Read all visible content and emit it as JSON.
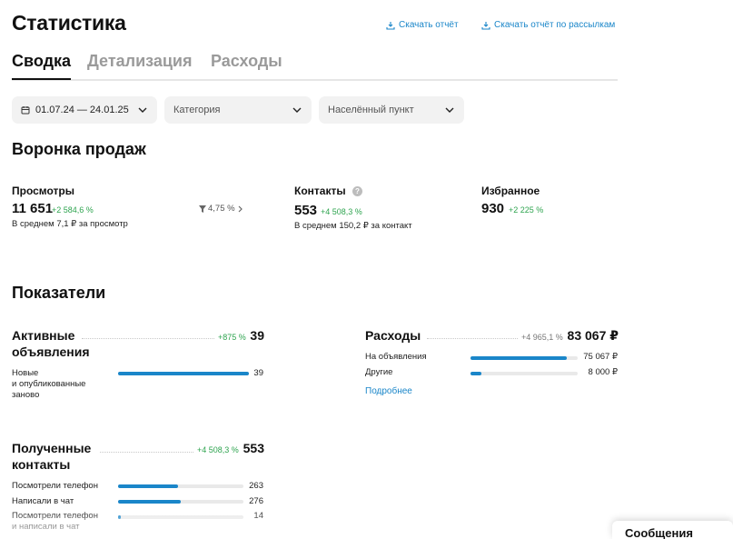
{
  "header": {
    "title": "Статистика",
    "download_report": "Скачать отчёт",
    "download_mailing_report": "Скачать отчёт по рассылкам"
  },
  "tabs": [
    {
      "label": "Сводка",
      "active": true
    },
    {
      "label": "Детализация",
      "active": false
    },
    {
      "label": "Расходы",
      "active": false
    }
  ],
  "filters": {
    "date_range": "01.07.24 — 24.01.25",
    "category_placeholder": "Категория",
    "city_placeholder": "Населённый пункт"
  },
  "funnel": {
    "title": "Воронка продаж",
    "views": {
      "label": "Просмотры",
      "value": "11 651",
      "delta": "+2 584,6 %",
      "sub": "В среднем 7,1 ₽ за просмотр"
    },
    "conversion": "4,75 %",
    "contacts": {
      "label": "Контакты",
      "value": "553",
      "delta": "+4 508,3 %",
      "sub": "В среднем 150,2 ₽ за контакт"
    },
    "favorites": {
      "label": "Избранное",
      "value": "930",
      "delta": "+2 225 %"
    }
  },
  "indicators": {
    "title": "Показатели",
    "active_ads": {
      "label_line1": "Активные",
      "label_line2": "объявления",
      "delta": "+875 %",
      "value": "39",
      "rows": [
        {
          "label_line1": "Новые",
          "label_line2": "и опубликованные",
          "label_line3": "заново",
          "value": "39",
          "fraction": 1.0
        }
      ]
    },
    "expenses": {
      "label": "Расходы",
      "delta": "+4 965,1 %",
      "value": "83 067 ₽",
      "rows": [
        {
          "label": "На объявления",
          "value": "75 067 ₽",
          "fraction": 0.9
        },
        {
          "label": "Другие",
          "value": "8 000 ₽",
          "fraction": 0.1
        }
      ],
      "more_link": "Подробнее"
    },
    "contacts_received": {
      "label_line1": "Полученные",
      "label_line2": "контакты",
      "delta": "+4 508,3 %",
      "value": "553",
      "rows": [
        {
          "label": "Посмотрели телефон",
          "value": "263",
          "fraction": 0.476
        },
        {
          "label": "Написали в чат",
          "value": "276",
          "fraction": 0.499
        },
        {
          "label_line1": "Посмотрели телефон",
          "label_line2": "и написали в чат",
          "value": "14",
          "fraction": 0.025
        }
      ]
    }
  },
  "messages_widget": {
    "label": "Сообщения"
  },
  "colors": {
    "accent": "#1a86c9",
    "positive": "#2ea44f",
    "track": "#e9e9e9"
  },
  "icons": [
    "download-icon",
    "calendar-icon",
    "chevron-down-icon",
    "info-icon",
    "funnel-icon",
    "chevron-right-icon"
  ]
}
